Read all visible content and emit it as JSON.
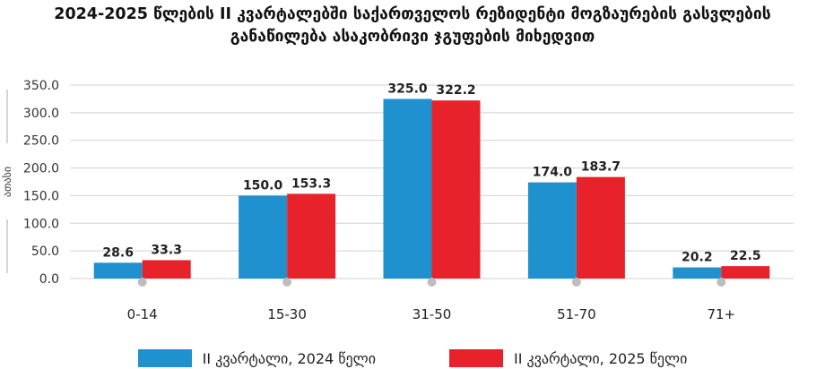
{
  "title_lines": [
    "2024-2025 წლების II კვარტალებში საქართველოს რეზიდენტი მოგზაურების გასვლების",
    "განაწილება ასაკობრივი ჯგუფების მიხედვით"
  ],
  "chart_data": {
    "type": "bar",
    "title": "2024-2025 წლების II კვარტალებში საქართველოს რეზიდენტი მოგზაურების გასვლების განაწილება ასაკობრივი ჯგუფების მიხედვით",
    "ylabel": "ათასი",
    "xlabel": "",
    "ylim": [
      0,
      350
    ],
    "yticks": [
      "0.0",
      "50.0",
      "100.0",
      "150.0",
      "200.0",
      "250.0",
      "300.0",
      "350.0"
    ],
    "grid": true,
    "legend_position": "bottom",
    "categories": [
      "0-14",
      "15-30",
      "31-50",
      "51-70",
      "71+"
    ],
    "series": [
      {
        "name": "II კვარტალი, 2024 წელი",
        "color": "#1F91CF",
        "values": [
          28.6,
          150.0,
          325.0,
          174.0,
          20.2
        ],
        "labels": [
          "28.6",
          "150.0",
          "325.0",
          "174.0",
          "20.2"
        ]
      },
      {
        "name": "II კვარტალი, 2025 წელი",
        "color": "#E8222B",
        "values": [
          33.3,
          153.3,
          322.2,
          183.7,
          22.5
        ],
        "labels": [
          "33.3",
          "153.3",
          "322.2",
          "183.7",
          "22.5"
        ]
      }
    ]
  }
}
